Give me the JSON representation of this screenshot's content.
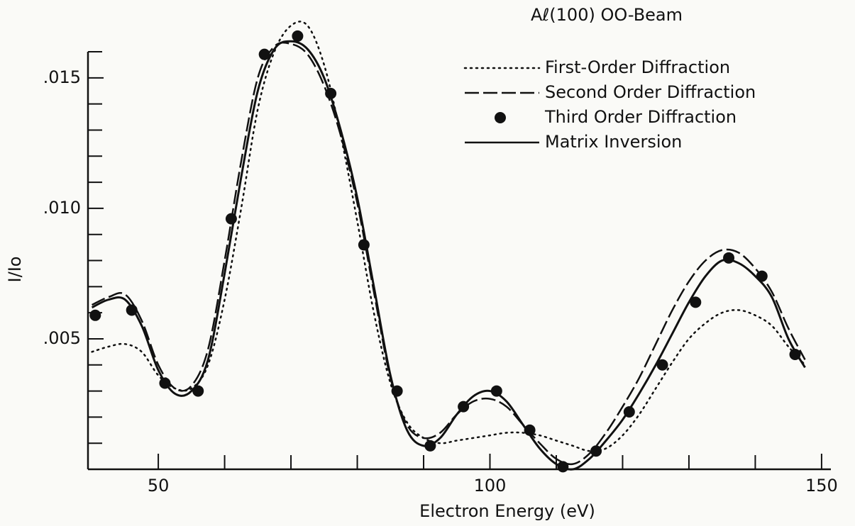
{
  "chart_data": {
    "type": "line",
    "title": "Aℓ(100) OO-Beam",
    "x_label": "Electron Energy  (eV)",
    "y_label": "I/Io",
    "xlim": [
      39.4,
      151.4
    ],
    "ylim": [
      0,
      0.016
    ],
    "xticks": [
      50,
      100,
      150
    ],
    "xminor_ticks": [
      60,
      70,
      80,
      90,
      110,
      120,
      130,
      140
    ],
    "yticks": [
      {
        "value": 0.005,
        "label": ".005"
      },
      {
        "value": 0.01,
        "label": ".010"
      },
      {
        "value": 0.015,
        "label": ".015"
      }
    ],
    "yminor_ticks": [
      0.001,
      0.002,
      0.003,
      0.004,
      0.006,
      0.007,
      0.008,
      0.009,
      0.011,
      0.012,
      0.013,
      0.014,
      0.016
    ],
    "grid": false,
    "x": [
      40,
      42.5,
      45,
      47.5,
      50,
      52.5,
      55,
      57.5,
      60,
      62.5,
      65,
      67.5,
      70,
      72.5,
      75,
      77.5,
      80,
      82.5,
      85,
      87.5,
      90,
      92.5,
      95,
      97.5,
      100,
      102.5,
      105,
      107.5,
      110,
      112.5,
      115,
      117.5,
      120,
      122.5,
      125,
      127.5,
      130,
      132.5,
      135,
      137.5,
      140,
      142.5,
      145,
      147.5
    ],
    "series": [
      {
        "name": "First-Order Diffraction",
        "style": "dotted",
        "color": "#111111",
        "values": [
          0.0045,
          0.0047,
          0.0048,
          0.0045,
          0.0036,
          0.0031,
          0.0031,
          0.004,
          0.0065,
          0.01,
          0.0138,
          0.016,
          0.017,
          0.017,
          0.0155,
          0.0128,
          0.0095,
          0.006,
          0.0033,
          0.0018,
          0.0012,
          0.001,
          0.0011,
          0.0012,
          0.0013,
          0.0014,
          0.0014,
          0.0013,
          0.0011,
          0.0009,
          0.0007,
          0.0008,
          0.0013,
          0.0021,
          0.0031,
          0.0041,
          0.005,
          0.0056,
          0.006,
          0.0061,
          0.0059,
          0.0055,
          0.0047,
          0.004
        ]
      },
      {
        "name": "Second Order Diffraction",
        "style": "dashed",
        "color": "#111111",
        "values": [
          0.0063,
          0.0066,
          0.0067,
          0.0057,
          0.004,
          0.0031,
          0.0032,
          0.0046,
          0.008,
          0.0118,
          0.015,
          0.0162,
          0.0163,
          0.0159,
          0.0147,
          0.0128,
          0.0102,
          0.0068,
          0.0035,
          0.0017,
          0.0012,
          0.0014,
          0.0021,
          0.0026,
          0.0027,
          0.0024,
          0.0017,
          0.001,
          0.0004,
          0.0002,
          0.0006,
          0.0014,
          0.0024,
          0.0035,
          0.0048,
          0.0061,
          0.0072,
          0.008,
          0.0084,
          0.0083,
          0.0077,
          0.0068,
          0.0054,
          0.0042
        ]
      },
      {
        "name": "Third Order Diffraction",
        "style": "points",
        "color": "#111111",
        "x": [
          40.5,
          46,
          51,
          56,
          61,
          66,
          71,
          76,
          81,
          86,
          91,
          96,
          101,
          106,
          111,
          116,
          121,
          126,
          131,
          136,
          141,
          146
        ],
        "values": [
          0.0059,
          0.0061,
          0.0033,
          0.003,
          0.0096,
          0.0159,
          0.0166,
          0.0144,
          0.0086,
          0.003,
          0.0009,
          0.0024,
          0.003,
          0.0015,
          0.0001,
          0.0007,
          0.0022,
          0.004,
          0.0064,
          0.0081,
          0.0074,
          0.0044
        ]
      },
      {
        "name": "Matrix Inversion",
        "style": "solid",
        "color": "#111111",
        "values": [
          0.0062,
          0.0065,
          0.0065,
          0.0055,
          0.0038,
          0.0029,
          0.003,
          0.0042,
          0.0075,
          0.0112,
          0.0145,
          0.0161,
          0.0164,
          0.0161,
          0.015,
          0.013,
          0.0104,
          0.007,
          0.0036,
          0.0015,
          0.0009,
          0.0012,
          0.0021,
          0.0028,
          0.003,
          0.0026,
          0.0017,
          0.0008,
          0.0002,
          0,
          0.0004,
          0.0011,
          0.0019,
          0.0029,
          0.004,
          0.0052,
          0.0064,
          0.0074,
          0.008,
          0.0079,
          0.0074,
          0.0066,
          0.005,
          0.0039
        ]
      }
    ]
  }
}
